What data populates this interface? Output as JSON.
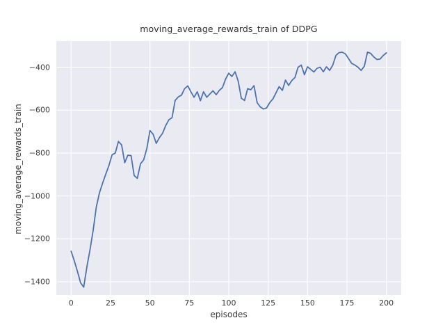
{
  "figure": {
    "background": "#ffffff"
  },
  "chart_data": {
    "type": "line",
    "title": "moving_average_rewards_train of DDPG",
    "xlabel": "episodes",
    "ylabel": "moving_average_rewards_train",
    "grid": true,
    "legend": false,
    "plot_background": "#EAEAF2",
    "grid_color": "#FFFFFF",
    "xlim": [
      -9.4,
      209.4
    ],
    "ylim": [
      -1462,
      -278
    ],
    "xticks": {
      "values": [
        0,
        25,
        50,
        75,
        100,
        125,
        150,
        175,
        200
      ],
      "labels": [
        "0",
        "25",
        "50",
        "75",
        "100",
        "125",
        "150",
        "175",
        "200"
      ]
    },
    "yticks": {
      "values": [
        -400,
        -600,
        -800,
        -1000,
        -1200,
        -1400
      ],
      "labels": [
        "−400",
        "−600",
        "−800",
        "−1000",
        "−1200",
        "−1400"
      ]
    },
    "series": [
      {
        "name": "moving_average_rewards_train",
        "color": "#4C72B0",
        "x": [
          0,
          2,
          4,
          6,
          8,
          10,
          12,
          14,
          16,
          18,
          20,
          22,
          24,
          26,
          28,
          30,
          32,
          34,
          36,
          38,
          40,
          42,
          44,
          46,
          48,
          50,
          52,
          54,
          56,
          58,
          60,
          62,
          64,
          66,
          68,
          70,
          72,
          74,
          76,
          78,
          80,
          82,
          84,
          86,
          88,
          90,
          92,
          94,
          96,
          98,
          100,
          102,
          104,
          106,
          108,
          110,
          112,
          114,
          116,
          118,
          120,
          122,
          124,
          126,
          128,
          130,
          132,
          134,
          136,
          138,
          140,
          142,
          144,
          146,
          148,
          150,
          152,
          154,
          156,
          158,
          160,
          162,
          164,
          166,
          168,
          170,
          172,
          174,
          176,
          178,
          180,
          182,
          184,
          186,
          188,
          190,
          192,
          194,
          196,
          198,
          200
        ],
        "values": [
          -1258,
          -1302,
          -1352,
          -1405,
          -1425,
          -1330,
          -1250,
          -1160,
          -1050,
          -985,
          -940,
          -898,
          -858,
          -808,
          -800,
          -746,
          -762,
          -845,
          -810,
          -812,
          -905,
          -918,
          -850,
          -832,
          -780,
          -695,
          -712,
          -755,
          -728,
          -708,
          -672,
          -645,
          -635,
          -555,
          -538,
          -530,
          -500,
          -487,
          -515,
          -540,
          -514,
          -556,
          -514,
          -540,
          -525,
          -510,
          -528,
          -508,
          -495,
          -455,
          -428,
          -443,
          -421,
          -465,
          -545,
          -555,
          -500,
          -505,
          -486,
          -565,
          -585,
          -595,
          -590,
          -565,
          -548,
          -519,
          -490,
          -508,
          -460,
          -485,
          -462,
          -448,
          -400,
          -390,
          -435,
          -398,
          -410,
          -422,
          -405,
          -400,
          -421,
          -398,
          -415,
          -390,
          -345,
          -332,
          -330,
          -338,
          -360,
          -382,
          -390,
          -400,
          -415,
          -395,
          -330,
          -335,
          -352,
          -364,
          -362,
          -345,
          -333
        ]
      }
    ]
  }
}
